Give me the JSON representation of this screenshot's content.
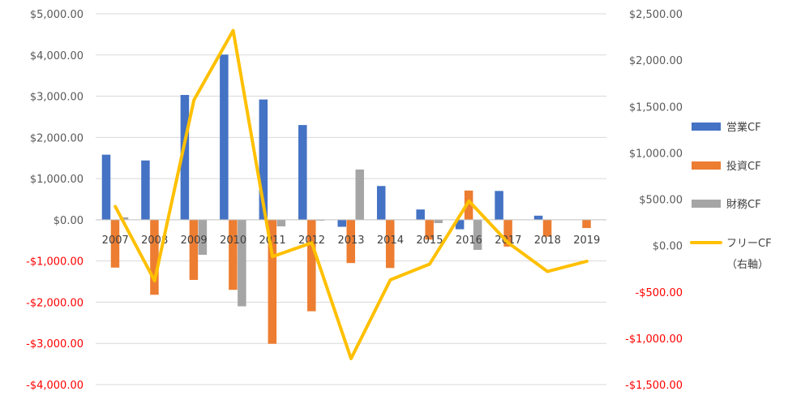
{
  "chart_data": {
    "type": "bar",
    "categories": [
      "2007",
      "2008",
      "2009",
      "2010",
      "2011",
      "2012",
      "2013",
      "2014",
      "2015",
      "2016",
      "2017",
      "2018",
      "2019"
    ],
    "series": [
      {
        "name": "営業CF",
        "kind": "bar",
        "axis": "left",
        "color": "#4472C4",
        "values": [
          1580,
          1440,
          3030,
          4010,
          2920,
          2300,
          -170,
          820,
          250,
          -230,
          700,
          100,
          0
        ]
      },
      {
        "name": "投資CF",
        "kind": "bar",
        "axis": "left",
        "color": "#ED7D31",
        "values": [
          -1160,
          -1820,
          -1460,
          -1700,
          -3010,
          -2220,
          -1050,
          -1170,
          -480,
          710,
          -650,
          -410,
          -200
        ]
      },
      {
        "name": "財務CF",
        "kind": "bar",
        "axis": "left",
        "color": "#A5A5A5",
        "values": [
          60,
          0,
          -850,
          -2100,
          -160,
          -20,
          1220,
          0,
          -80,
          -730,
          0,
          0,
          0
        ]
      },
      {
        "name": "フリーCF",
        "name_line2": "（右軸）",
        "kind": "line",
        "axis": "right",
        "color": "#FFC000",
        "values": [
          420,
          -380,
          1570,
          2320,
          -120,
          30,
          -1220,
          -370,
          -200,
          480,
          30,
          -280,
          -170
        ]
      }
    ],
    "y_left": {
      "ylim": [
        -4000,
        5000
      ],
      "ticks": [
        5000,
        4000,
        3000,
        2000,
        1000,
        0,
        -1000,
        -2000,
        -3000,
        -4000
      ],
      "tick_labels": [
        "$5,000.00",
        "$4,000.00",
        "$3,000.00",
        "$2,000.00",
        "$1,000.00",
        "$0.00",
        "-$1,000.00",
        "-$2,000.00",
        "-$3,000.00",
        "-$4,000.00"
      ]
    },
    "y_right": {
      "ylim": [
        -1500,
        2500
      ],
      "ticks": [
        2500,
        2000,
        1500,
        1000,
        500,
        0,
        -500,
        -1000,
        -1500
      ],
      "tick_labels": [
        "$2,500.00",
        "$2,000.00",
        "$1,500.00",
        "$1,000.00",
        "$500.00",
        "$0.00",
        "-$500.00",
        "-$1,000.00",
        "-$1,500.00"
      ]
    },
    "negative_tick_color": "#FF0000",
    "positive_tick_color": "#595959",
    "grid": true,
    "legend_position": "right"
  }
}
